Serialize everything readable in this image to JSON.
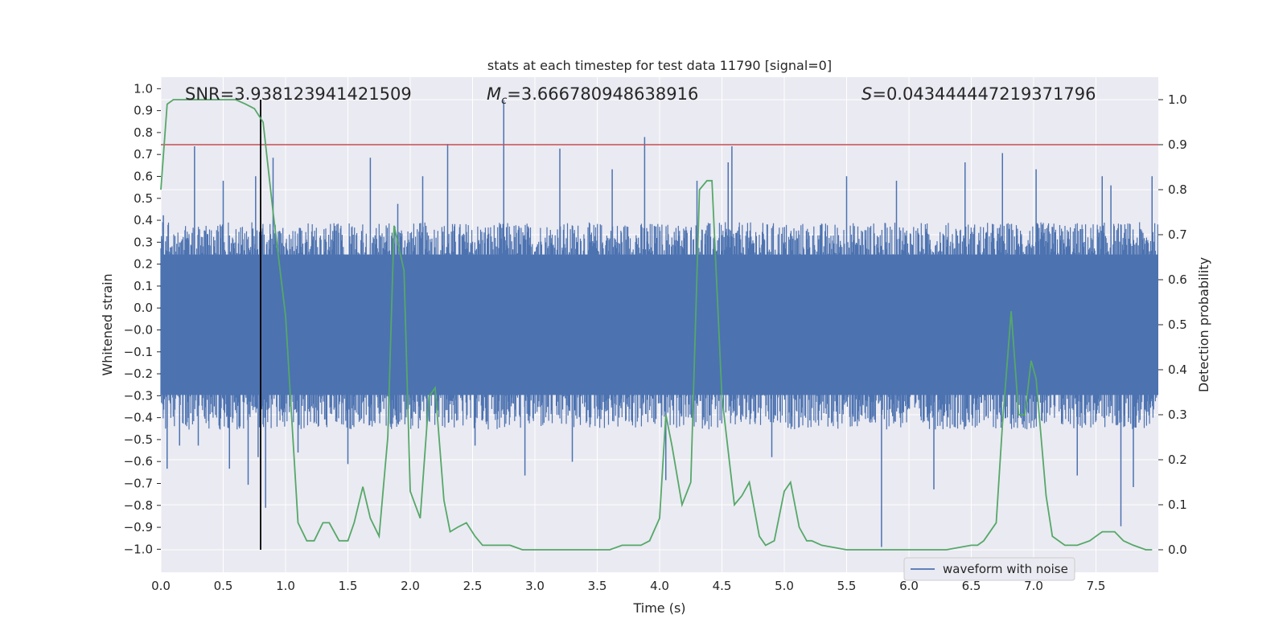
{
  "chart_data": {
    "type": "line",
    "title": "stats at each timestep for test data 11790 [signal=0]",
    "xlabel": "Time (s)",
    "ylabel_left": "Whitened strain",
    "ylabel_right": "Detection probability",
    "xlim": [
      0.0,
      8.0
    ],
    "ylim_left": [
      -1.1,
      1.05
    ],
    "ylim_right": [
      -0.05,
      1.05
    ],
    "x_ticks": [
      "0.0",
      "0.5",
      "1.0",
      "1.5",
      "2.0",
      "2.5",
      "3.0",
      "3.5",
      "4.0",
      "4.5",
      "5.0",
      "5.5",
      "6.0",
      "6.5",
      "7.0",
      "7.5"
    ],
    "y_left_ticks": [
      "1.0",
      "0.9",
      "0.8",
      "0.7",
      "0.6",
      "0.5",
      "0.4",
      "0.3",
      "0.2",
      "0.1",
      "0.0",
      "-0.0",
      "-0.1",
      "-0.2",
      "-0.3",
      "-0.4",
      "-0.5",
      "-0.6",
      "-0.7",
      "-0.8",
      "-0.9",
      "-1.0"
    ],
    "y_right_ticks": [
      "1.0",
      "0.9",
      "0.8",
      "0.7",
      "0.6",
      "0.5",
      "0.4",
      "0.3",
      "0.2",
      "0.1",
      "0.0"
    ],
    "annotations": {
      "snr": "SNR=3.938123941421509",
      "mc_symbol": "M",
      "mc_sub": "c",
      "mc_value": "=3.666780948638916",
      "s_symbol": "S",
      "s_value": "=0.043444447219371796"
    },
    "threshold": {
      "value": 0.9,
      "color": "#c44e52"
    },
    "marker_time": 0.8,
    "waveform": {
      "name": "waveform with noise",
      "color": "#4c72b0",
      "envelope_upper": 0.35,
      "envelope_lower": -0.4,
      "peaks": [
        {
          "x": 0.02,
          "y": 0.45
        },
        {
          "x": 0.05,
          "y": -0.65
        },
        {
          "x": 0.15,
          "y": -0.55
        },
        {
          "x": 0.27,
          "y": 0.75
        },
        {
          "x": 0.3,
          "y": -0.55
        },
        {
          "x": 0.5,
          "y": 0.6
        },
        {
          "x": 0.55,
          "y": -0.65
        },
        {
          "x": 0.7,
          "y": -0.72
        },
        {
          "x": 0.76,
          "y": 0.62
        },
        {
          "x": 0.78,
          "y": -0.6
        },
        {
          "x": 0.84,
          "y": -0.82
        },
        {
          "x": 0.9,
          "y": 0.7
        },
        {
          "x": 1.1,
          "y": -0.58
        },
        {
          "x": 1.5,
          "y": -0.63
        },
        {
          "x": 1.68,
          "y": 0.7
        },
        {
          "x": 1.9,
          "y": 0.5
        },
        {
          "x": 2.1,
          "y": 0.62
        },
        {
          "x": 2.3,
          "y": 0.76
        },
        {
          "x": 2.52,
          "y": -0.55
        },
        {
          "x": 2.75,
          "y": 0.95
        },
        {
          "x": 2.92,
          "y": -0.68
        },
        {
          "x": 3.2,
          "y": 0.74
        },
        {
          "x": 3.3,
          "y": -0.62
        },
        {
          "x": 3.62,
          "y": 0.65
        },
        {
          "x": 3.88,
          "y": 0.79
        },
        {
          "x": 4.05,
          "y": -0.7
        },
        {
          "x": 4.3,
          "y": 0.6
        },
        {
          "x": 4.55,
          "y": 0.68
        },
        {
          "x": 4.58,
          "y": 0.75
        },
        {
          "x": 4.9,
          "y": -0.6
        },
        {
          "x": 5.5,
          "y": 0.62
        },
        {
          "x": 5.78,
          "y": -0.99
        },
        {
          "x": 5.9,
          "y": 0.6
        },
        {
          "x": 6.2,
          "y": -0.74
        },
        {
          "x": 6.45,
          "y": 0.68
        },
        {
          "x": 6.75,
          "y": 0.72
        },
        {
          "x": 7.02,
          "y": 0.65
        },
        {
          "x": 7.35,
          "y": -0.68
        },
        {
          "x": 7.55,
          "y": 0.62
        },
        {
          "x": 7.62,
          "y": 0.58
        },
        {
          "x": 7.7,
          "y": -0.9
        },
        {
          "x": 7.8,
          "y": -0.73
        },
        {
          "x": 7.95,
          "y": 0.62
        }
      ]
    },
    "probability": {
      "name": "detection probability",
      "color": "#55a868",
      "x": [
        0.0,
        0.05,
        0.1,
        0.2,
        0.5,
        0.6,
        0.68,
        0.75,
        0.82,
        0.9,
        1.0,
        1.1,
        1.17,
        1.23,
        1.3,
        1.35,
        1.43,
        1.5,
        1.55,
        1.62,
        1.68,
        1.75,
        1.82,
        1.87,
        1.95,
        2.0,
        2.08,
        2.15,
        2.2,
        2.27,
        2.32,
        2.38,
        2.45,
        2.52,
        2.58,
        2.65,
        2.8,
        2.9,
        3.0,
        3.2,
        3.4,
        3.6,
        3.7,
        3.85,
        3.92,
        4.0,
        4.05,
        4.1,
        4.18,
        4.25,
        4.32,
        4.38,
        4.42,
        4.5,
        4.6,
        4.66,
        4.72,
        4.8,
        4.85,
        4.92,
        5.0,
        5.05,
        5.12,
        5.18,
        5.22,
        5.3,
        5.5,
        5.7,
        5.9,
        6.1,
        6.3,
        6.5,
        6.55,
        6.6,
        6.7,
        6.75,
        6.82,
        6.88,
        6.93,
        6.98,
        7.02,
        7.1,
        7.15,
        7.25,
        7.35,
        7.45,
        7.5,
        7.55,
        7.65,
        7.72,
        7.8,
        7.9,
        7.95
      ],
      "y": [
        0.8,
        0.99,
        1.0,
        1.0,
        1.0,
        1.0,
        0.99,
        0.98,
        0.95,
        0.75,
        0.52,
        0.06,
        0.02,
        0.02,
        0.06,
        0.06,
        0.02,
        0.02,
        0.06,
        0.14,
        0.07,
        0.03,
        0.25,
        0.72,
        0.62,
        0.13,
        0.07,
        0.34,
        0.36,
        0.11,
        0.04,
        0.05,
        0.06,
        0.03,
        0.01,
        0.01,
        0.01,
        0.0,
        0.0,
        0.0,
        0.0,
        0.0,
        0.01,
        0.01,
        0.02,
        0.07,
        0.3,
        0.23,
        0.1,
        0.15,
        0.8,
        0.82,
        0.82,
        0.34,
        0.1,
        0.12,
        0.15,
        0.03,
        0.01,
        0.02,
        0.13,
        0.15,
        0.05,
        0.02,
        0.02,
        0.01,
        0.0,
        0.0,
        0.0,
        0.0,
        0.0,
        0.01,
        0.01,
        0.02,
        0.06,
        0.28,
        0.53,
        0.3,
        0.3,
        0.42,
        0.38,
        0.12,
        0.03,
        0.01,
        0.01,
        0.02,
        0.03,
        0.04,
        0.04,
        0.02,
        0.01,
        0.0,
        0.0
      ]
    }
  }
}
